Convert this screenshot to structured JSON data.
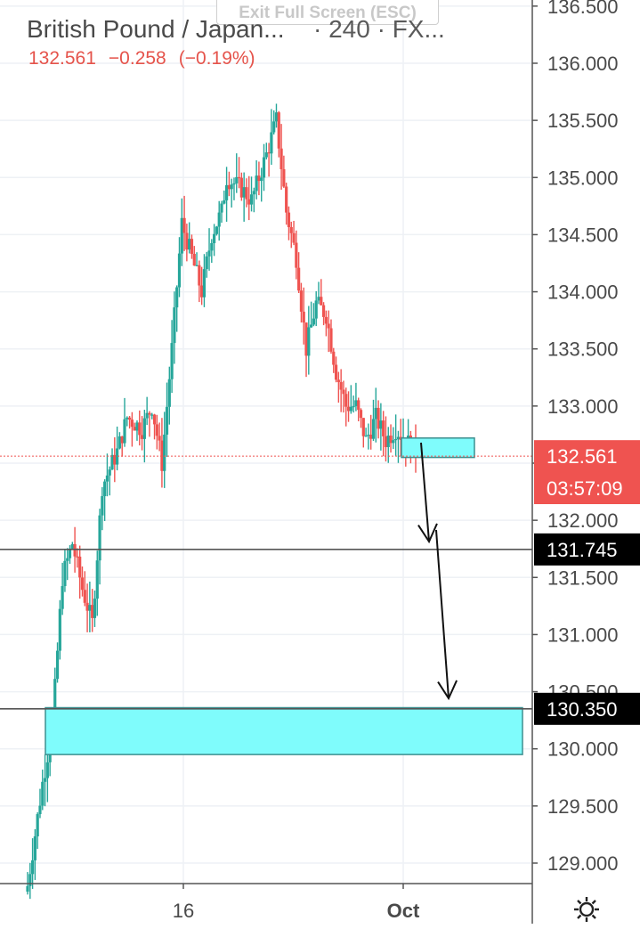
{
  "window": {
    "exit_fullscreen_label": "Exit Full Screen (ESC)"
  },
  "header": {
    "symbol": "British Pound / Japan...",
    "interval_source": "· 240 · FX...",
    "last_price": "132.561",
    "change": "−0.258",
    "change_pct": "(−0.19%)"
  },
  "colors": {
    "up": "#26a69a",
    "down": "#ef5350",
    "zone": "#7ffcfc",
    "zone_border": "#3d8f8f",
    "tag_black": "#000000",
    "tag_red": "#ef5350"
  },
  "icons": {
    "settings": "gear-icon"
  },
  "chart_data": {
    "type": "candlestick",
    "symbol": "British Pound / Japanese Yen",
    "interval": "240",
    "ylim": [
      128.8,
      136.6
    ],
    "y_ticks": [
      "129.000",
      "129.500",
      "130.000",
      "130.500",
      "131.000",
      "131.500",
      "132.000",
      "132.500",
      "133.000",
      "133.500",
      "134.000",
      "134.500",
      "135.000",
      "135.500",
      "136.000",
      "136.500"
    ],
    "x_ticks": [
      "16",
      "Oct"
    ],
    "grid": true,
    "price_tags": [
      {
        "label": "132.561",
        "value": 132.561,
        "style": "red"
      },
      {
        "label": "03:57:09",
        "value": 132.28,
        "style": "red-outline"
      },
      {
        "label": "131.745",
        "value": 131.745,
        "style": "black"
      },
      {
        "label": "130.350",
        "value": 130.35,
        "style": "black"
      }
    ],
    "horizontal_lines": [
      {
        "value": 131.745,
        "style": "solid",
        "color": "#555555"
      },
      {
        "value": 130.35,
        "style": "solid",
        "color": "#555555"
      },
      {
        "value": 132.561,
        "style": "dotted",
        "color": "#ef5350"
      }
    ],
    "zones": [
      {
        "from_value": 132.55,
        "to_value": 132.72,
        "color": "#7ffcfc"
      },
      {
        "from_value": 129.95,
        "to_value": 130.36,
        "color": "#7ffcfc"
      }
    ],
    "candles_summary": {
      "keypoints": [
        [
          0,
          128.8
        ],
        [
          6,
          129.7
        ],
        [
          10,
          130.2
        ],
        [
          14,
          131.5
        ],
        [
          18,
          131.8
        ],
        [
          22,
          131.4
        ],
        [
          26,
          131.1
        ],
        [
          30,
          132.3
        ],
        [
          36,
          132.6
        ],
        [
          40,
          132.9
        ],
        [
          46,
          132.8
        ],
        [
          50,
          133.0
        ],
        [
          54,
          132.5
        ],
        [
          58,
          133.5
        ],
        [
          62,
          134.6
        ],
        [
          66,
          134.3
        ],
        [
          70,
          134.0
        ],
        [
          74,
          134.5
        ],
        [
          78,
          134.7
        ],
        [
          80,
          135.0
        ],
        [
          86,
          134.9
        ],
        [
          90,
          134.8
        ],
        [
          96,
          135.2
        ],
        [
          100,
          135.5
        ],
        [
          104,
          134.7
        ],
        [
          108,
          134.3
        ],
        [
          112,
          133.5
        ],
        [
          116,
          133.9
        ],
        [
          120,
          133.8
        ],
        [
          124,
          133.3
        ],
        [
          128,
          133.0
        ],
        [
          132,
          133.0
        ],
        [
          136,
          132.7
        ],
        [
          140,
          132.9
        ],
        [
          144,
          132.7
        ],
        [
          148,
          132.8
        ],
        [
          152,
          132.7
        ],
        [
          156,
          132.6
        ]
      ]
    }
  }
}
